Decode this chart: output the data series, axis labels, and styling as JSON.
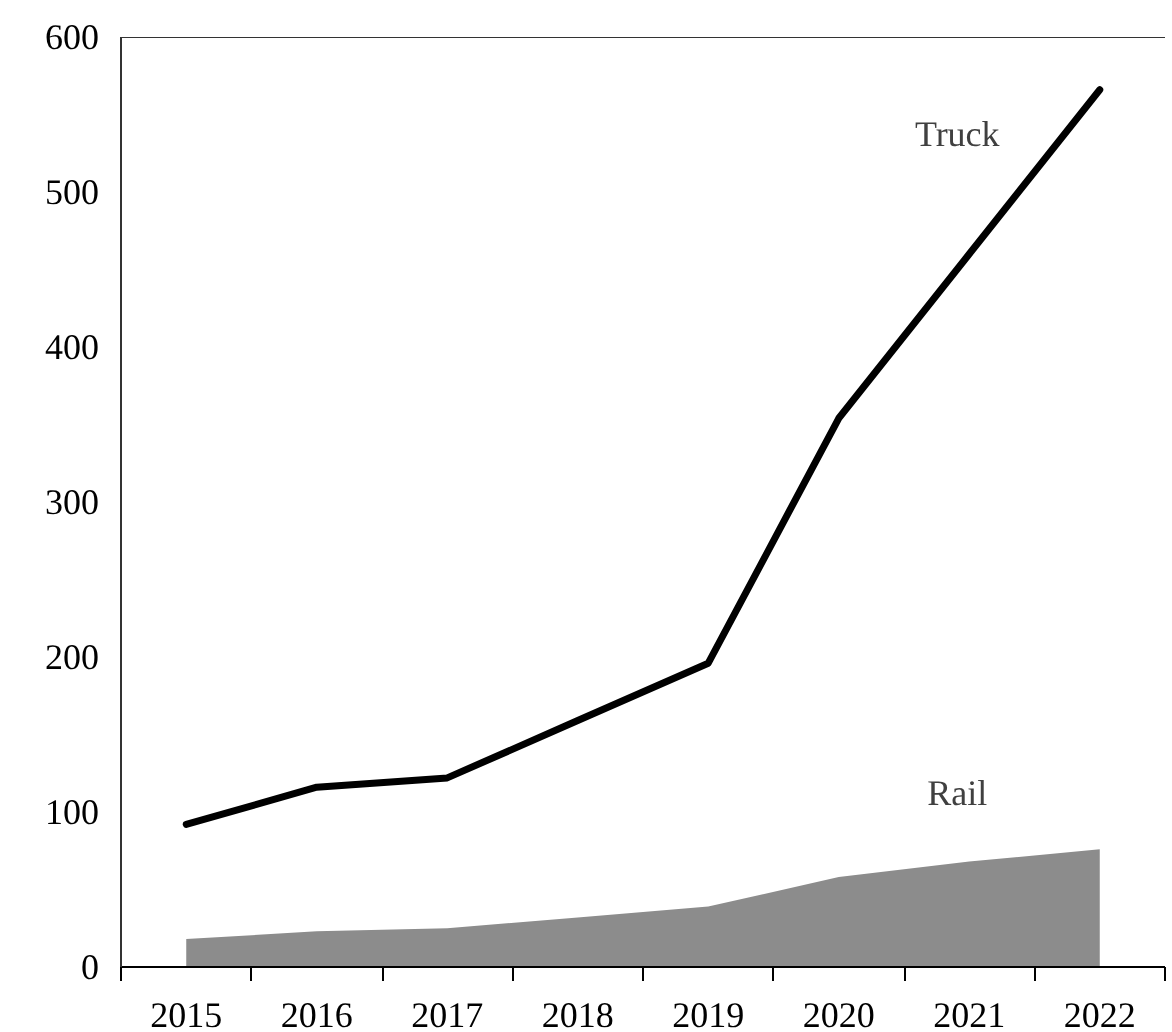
{
  "chart_data": {
    "type": "line",
    "categories": [
      "2015",
      "2016",
      "2017",
      "2018",
      "2019",
      "2020",
      "2021",
      "2022"
    ],
    "series": [
      {
        "name": "Truck",
        "color": "#000000",
        "values": [
          92,
          116,
          122,
          159,
          196,
          354,
          460,
          566
        ]
      },
      {
        "name": "Rail",
        "type": "area",
        "color": "#8c8c8c",
        "values": [
          18,
          23,
          25,
          32,
          39,
          58,
          68,
          76
        ]
      }
    ],
    "ylim": [
      0,
      600
    ],
    "yticks": [
      0,
      100,
      200,
      300,
      400,
      500,
      600
    ],
    "grid": false
  }
}
